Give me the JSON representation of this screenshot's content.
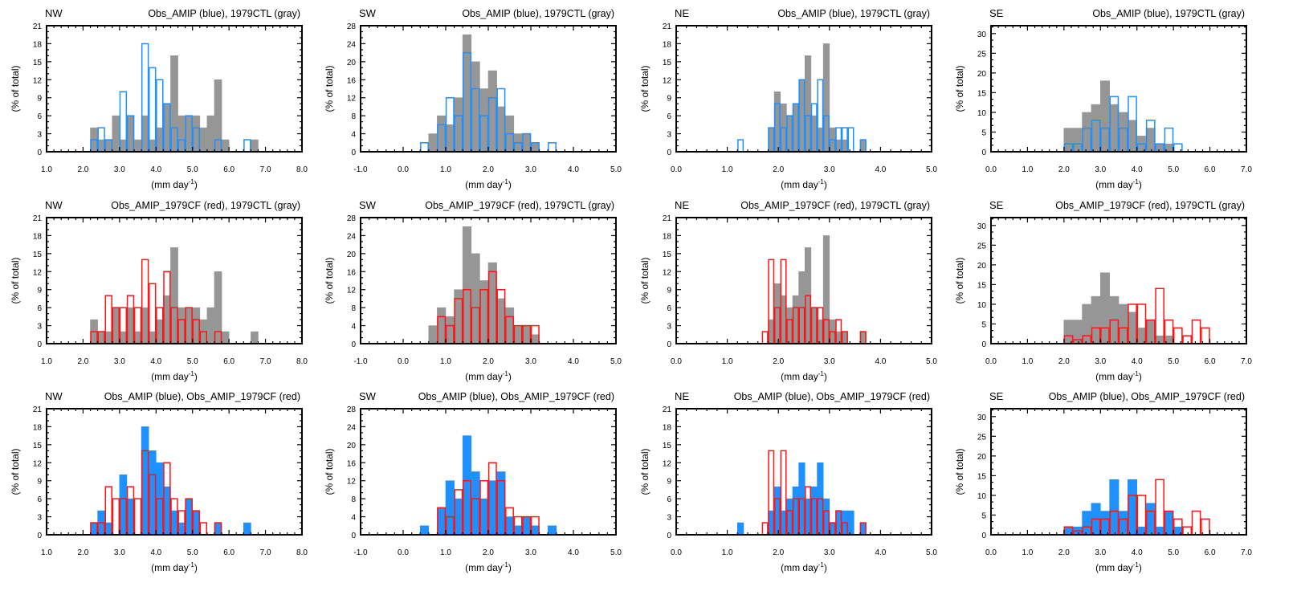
{
  "figure": {
    "xlabel_main": "(mm day",
    "xlabel_sup": "-1",
    "xlabel_end": ")",
    "ylabel": "(% of total)"
  },
  "colors": {
    "gray": "#969696",
    "blue": "#1e90ff",
    "red": "#ff1414",
    "axis": "#000000"
  },
  "regions": [
    {
      "key": "NW",
      "label": "NW",
      "xlim": [
        1,
        8
      ],
      "xticks": [
        "1.0",
        "2.0",
        "3.0",
        "4.0",
        "5.0",
        "6.0",
        "7.0",
        "8.0"
      ],
      "ylim": [
        0,
        21
      ],
      "yticks": [
        "0",
        "3",
        "6",
        "9",
        "12",
        "15",
        "18",
        "21"
      ]
    },
    {
      "key": "SW",
      "label": "SW",
      "xlim": [
        -1,
        5
      ],
      "xticks": [
        "-1.0",
        "0.0",
        "1.0",
        "2.0",
        "3.0",
        "4.0",
        "5.0"
      ],
      "ylim": [
        0,
        28
      ],
      "yticks": [
        "0",
        "4",
        "8",
        "12",
        "16",
        "20",
        "24",
        "28"
      ]
    },
    {
      "key": "NE",
      "label": "NE",
      "xlim": [
        0,
        5
      ],
      "xticks": [
        "0.0",
        "1.0",
        "2.0",
        "3.0",
        "4.0",
        "5.0"
      ],
      "ylim": [
        0,
        21
      ],
      "yticks": [
        "0",
        "3",
        "6",
        "9",
        "12",
        "15",
        "18",
        "21"
      ]
    },
    {
      "key": "SE",
      "label": "SE",
      "xlim": [
        0,
        7
      ],
      "xticks": [
        "0.0",
        "1.0",
        "2.0",
        "3.0",
        "4.0",
        "5.0",
        "6.0",
        "7.0"
      ],
      "ylim": [
        0,
        32
      ],
      "yticks": [
        "0",
        "5",
        "10",
        "15",
        "20",
        "25",
        "30"
      ]
    }
  ],
  "rows": [
    {
      "title": "Obs_AMIP (blue), 1979CTL (gray)",
      "filled": "ctl",
      "outline": "amip"
    },
    {
      "title": "Obs_AMIP_1979CF (red), 1979CTL (gray)",
      "filled": "ctl",
      "outline": "cf"
    },
    {
      "title": "Obs_AMIP (blue), Obs_AMIP_1979CF (red)",
      "filled": "amip",
      "outline": "cf"
    }
  ],
  "chart_data": [
    {
      "type": "histogram",
      "region": "NW",
      "bin_width": 0.2,
      "xlim": [
        1,
        8
      ],
      "ylim": [
        0,
        21
      ],
      "ylabel": "(% of total)",
      "xlabel": "(mm day-1)",
      "series": {
        "ctl": {
          "name": "1979CTL",
          "color": "gray",
          "bins": [
            {
              "x": 2.2,
              "y": 4
            },
            {
              "x": 2.4,
              "y": 2
            },
            {
              "x": 2.6,
              "y": 2
            },
            {
              "x": 2.8,
              "y": 6
            },
            {
              "x": 3.0,
              "y": 2
            },
            {
              "x": 3.2,
              "y": 6
            },
            {
              "x": 3.4,
              "y": 2
            },
            {
              "x": 3.6,
              "y": 6
            },
            {
              "x": 3.8,
              "y": 2
            },
            {
              "x": 4.0,
              "y": 4
            },
            {
              "x": 4.2,
              "y": 8
            },
            {
              "x": 4.4,
              "y": 16
            },
            {
              "x": 4.6,
              "y": 6
            },
            {
              "x": 4.8,
              "y": 6
            },
            {
              "x": 5.0,
              "y": 6
            },
            {
              "x": 5.2,
              "y": 4
            },
            {
              "x": 5.4,
              "y": 6
            },
            {
              "x": 5.6,
              "y": 12
            },
            {
              "x": 5.8,
              "y": 2
            },
            {
              "x": 6.6,
              "y": 2
            }
          ]
        },
        "amip": {
          "name": "Obs_AMIP",
          "color": "blue",
          "bins": [
            {
              "x": 2.2,
              "y": 2
            },
            {
              "x": 2.4,
              "y": 4
            },
            {
              "x": 2.6,
              "y": 2
            },
            {
              "x": 3.0,
              "y": 10
            },
            {
              "x": 3.2,
              "y": 6
            },
            {
              "x": 3.6,
              "y": 18
            },
            {
              "x": 3.8,
              "y": 14
            },
            {
              "x": 4.0,
              "y": 12
            },
            {
              "x": 4.2,
              "y": 8
            },
            {
              "x": 4.4,
              "y": 4
            },
            {
              "x": 4.6,
              "y": 2
            },
            {
              "x": 4.8,
              "y": 6
            },
            {
              "x": 5.0,
              "y": 4
            },
            {
              "x": 5.6,
              "y": 2
            },
            {
              "x": 6.4,
              "y": 2
            }
          ]
        },
        "cf": {
          "name": "Obs_AMIP_1979CF",
          "color": "red",
          "bins": [
            {
              "x": 2.2,
              "y": 2
            },
            {
              "x": 2.4,
              "y": 2
            },
            {
              "x": 2.6,
              "y": 8
            },
            {
              "x": 2.8,
              "y": 6
            },
            {
              "x": 3.0,
              "y": 6
            },
            {
              "x": 3.2,
              "y": 8
            },
            {
              "x": 3.4,
              "y": 6
            },
            {
              "x": 3.6,
              "y": 14
            },
            {
              "x": 3.8,
              "y": 10
            },
            {
              "x": 4.0,
              "y": 6
            },
            {
              "x": 4.2,
              "y": 12
            },
            {
              "x": 4.4,
              "y": 6
            },
            {
              "x": 4.6,
              "y": 4
            },
            {
              "x": 4.8,
              "y": 6
            },
            {
              "x": 5.0,
              "y": 4
            },
            {
              "x": 5.2,
              "y": 2
            },
            {
              "x": 5.6,
              "y": 2
            }
          ]
        }
      }
    },
    {
      "type": "histogram",
      "region": "SW",
      "bin_width": 0.2,
      "xlim": [
        -1,
        5
      ],
      "ylim": [
        0,
        28
      ],
      "ylabel": "(% of total)",
      "xlabel": "(mm day-1)",
      "series": {
        "ctl": {
          "name": "1979CTL",
          "color": "gray",
          "bins": [
            {
              "x": 0.6,
              "y": 4
            },
            {
              "x": 0.8,
              "y": 8
            },
            {
              "x": 1.0,
              "y": 6
            },
            {
              "x": 1.2,
              "y": 12
            },
            {
              "x": 1.4,
              "y": 26
            },
            {
              "x": 1.6,
              "y": 20
            },
            {
              "x": 1.8,
              "y": 14
            },
            {
              "x": 2.0,
              "y": 18
            },
            {
              "x": 2.2,
              "y": 10
            },
            {
              "x": 2.4,
              "y": 8
            },
            {
              "x": 2.6,
              "y": 4
            },
            {
              "x": 2.8,
              "y": 4
            },
            {
              "x": 3.0,
              "y": 2
            }
          ]
        },
        "amip": {
          "name": "Obs_AMIP",
          "color": "blue",
          "bins": [
            {
              "x": 0.4,
              "y": 2
            },
            {
              "x": 0.8,
              "y": 6
            },
            {
              "x": 1.0,
              "y": 12
            },
            {
              "x": 1.2,
              "y": 8
            },
            {
              "x": 1.4,
              "y": 22
            },
            {
              "x": 1.6,
              "y": 14
            },
            {
              "x": 1.8,
              "y": 8
            },
            {
              "x": 2.0,
              "y": 12
            },
            {
              "x": 2.2,
              "y": 14
            },
            {
              "x": 2.4,
              "y": 4
            },
            {
              "x": 2.6,
              "y": 2
            },
            {
              "x": 2.8,
              "y": 4
            },
            {
              "x": 3.0,
              "y": 2
            },
            {
              "x": 3.4,
              "y": 2
            }
          ]
        },
        "cf": {
          "name": "Obs_AMIP_1979CF",
          "color": "red",
          "bins": [
            {
              "x": 0.8,
              "y": 6
            },
            {
              "x": 1.0,
              "y": 4
            },
            {
              "x": 1.2,
              "y": 10
            },
            {
              "x": 1.4,
              "y": 12
            },
            {
              "x": 1.6,
              "y": 8
            },
            {
              "x": 1.8,
              "y": 12
            },
            {
              "x": 2.0,
              "y": 16
            },
            {
              "x": 2.2,
              "y": 12
            },
            {
              "x": 2.4,
              "y": 6
            },
            {
              "x": 2.6,
              "y": 4
            },
            {
              "x": 2.8,
              "y": 4
            },
            {
              "x": 3.0,
              "y": 4
            }
          ]
        }
      }
    },
    {
      "type": "histogram",
      "region": "NE",
      "bin_width": 0.12,
      "xlim": [
        0,
        5
      ],
      "ylim": [
        0,
        21
      ],
      "ylabel": "(% of total)",
      "xlabel": "(mm day-1)",
      "series": {
        "ctl": {
          "name": "1979CTL",
          "color": "gray",
          "bins": [
            {
              "x": 1.8,
              "y": 4
            },
            {
              "x": 1.92,
              "y": 10
            },
            {
              "x": 2.04,
              "y": 8
            },
            {
              "x": 2.16,
              "y": 6
            },
            {
              "x": 2.28,
              "y": 8
            },
            {
              "x": 2.4,
              "y": 12
            },
            {
              "x": 2.52,
              "y": 16
            },
            {
              "x": 2.64,
              "y": 6
            },
            {
              "x": 2.76,
              "y": 4
            },
            {
              "x": 2.88,
              "y": 18
            },
            {
              "x": 3.0,
              "y": 4
            },
            {
              "x": 3.12,
              "y": 2
            },
            {
              "x": 3.24,
              "y": 2
            },
            {
              "x": 3.6,
              "y": 2
            }
          ]
        },
        "amip": {
          "name": "Obs_AMIP",
          "color": "blue",
          "bins": [
            {
              "x": 1.2,
              "y": 2
            },
            {
              "x": 1.8,
              "y": 4
            },
            {
              "x": 1.92,
              "y": 8
            },
            {
              "x": 2.04,
              "y": 4
            },
            {
              "x": 2.16,
              "y": 6
            },
            {
              "x": 2.28,
              "y": 8
            },
            {
              "x": 2.4,
              "y": 12
            },
            {
              "x": 2.52,
              "y": 6
            },
            {
              "x": 2.64,
              "y": 8
            },
            {
              "x": 2.76,
              "y": 12
            },
            {
              "x": 2.88,
              "y": 6
            },
            {
              "x": 3.0,
              "y": 2
            },
            {
              "x": 3.12,
              "y": 4
            },
            {
              "x": 3.24,
              "y": 4
            },
            {
              "x": 3.36,
              "y": 4
            },
            {
              "x": 3.6,
              "y": 2
            }
          ]
        },
        "cf": {
          "name": "Obs_AMIP_1979CF",
          "color": "red",
          "bins": [
            {
              "x": 1.68,
              "y": 2
            },
            {
              "x": 1.8,
              "y": 14
            },
            {
              "x": 1.92,
              "y": 6
            },
            {
              "x": 2.04,
              "y": 14
            },
            {
              "x": 2.16,
              "y": 4
            },
            {
              "x": 2.28,
              "y": 6
            },
            {
              "x": 2.4,
              "y": 6
            },
            {
              "x": 2.52,
              "y": 8
            },
            {
              "x": 2.64,
              "y": 6
            },
            {
              "x": 2.76,
              "y": 6
            },
            {
              "x": 2.88,
              "y": 4
            },
            {
              "x": 3.0,
              "y": 2
            },
            {
              "x": 3.12,
              "y": 4
            },
            {
              "x": 3.24,
              "y": 2
            },
            {
              "x": 3.6,
              "y": 2
            }
          ]
        }
      }
    },
    {
      "type": "histogram",
      "region": "SE",
      "bin_width": 0.25,
      "xlim": [
        0,
        7
      ],
      "ylim": [
        0,
        32
      ],
      "ylabel": "(% of total)",
      "xlabel": "(mm day-1)",
      "series": {
        "ctl": {
          "name": "1979CTL",
          "color": "gray",
          "bins": [
            {
              "x": 2.0,
              "y": 6
            },
            {
              "x": 2.25,
              "y": 6
            },
            {
              "x": 2.5,
              "y": 10
            },
            {
              "x": 2.75,
              "y": 12
            },
            {
              "x": 3.0,
              "y": 18
            },
            {
              "x": 3.25,
              "y": 12
            },
            {
              "x": 3.5,
              "y": 10
            },
            {
              "x": 3.75,
              "y": 8
            },
            {
              "x": 4.0,
              "y": 4
            },
            {
              "x": 4.25,
              "y": 6
            },
            {
              "x": 4.5,
              "y": 2
            },
            {
              "x": 4.75,
              "y": 2
            }
          ]
        },
        "amip": {
          "name": "Obs_AMIP",
          "color": "blue",
          "bins": [
            {
              "x": 2.0,
              "y": 2
            },
            {
              "x": 2.25,
              "y": 2
            },
            {
              "x": 2.5,
              "y": 6
            },
            {
              "x": 2.75,
              "y": 8
            },
            {
              "x": 3.0,
              "y": 6
            },
            {
              "x": 3.25,
              "y": 14
            },
            {
              "x": 3.5,
              "y": 6
            },
            {
              "x": 3.75,
              "y": 14
            },
            {
              "x": 4.0,
              "y": 2
            },
            {
              "x": 4.25,
              "y": 8
            },
            {
              "x": 4.5,
              "y": 2
            },
            {
              "x": 4.75,
              "y": 6
            },
            {
              "x": 5.0,
              "y": 2
            }
          ]
        },
        "cf": {
          "name": "Obs_AMIP_1979CF",
          "color": "red",
          "bins": [
            {
              "x": 2.0,
              "y": 2
            },
            {
              "x": 2.25,
              "y": 1
            },
            {
              "x": 2.5,
              "y": 2
            },
            {
              "x": 2.75,
              "y": 4
            },
            {
              "x": 3.0,
              "y": 4
            },
            {
              "x": 3.25,
              "y": 6
            },
            {
              "x": 3.5,
              "y": 4
            },
            {
              "x": 3.75,
              "y": 10
            },
            {
              "x": 4.0,
              "y": 10
            },
            {
              "x": 4.25,
              "y": 6
            },
            {
              "x": 4.5,
              "y": 14
            },
            {
              "x": 4.75,
              "y": 6
            },
            {
              "x": 5.0,
              "y": 4
            },
            {
              "x": 5.25,
              "y": 2
            },
            {
              "x": 5.5,
              "y": 6
            },
            {
              "x": 5.75,
              "y": 4
            }
          ]
        }
      }
    }
  ]
}
